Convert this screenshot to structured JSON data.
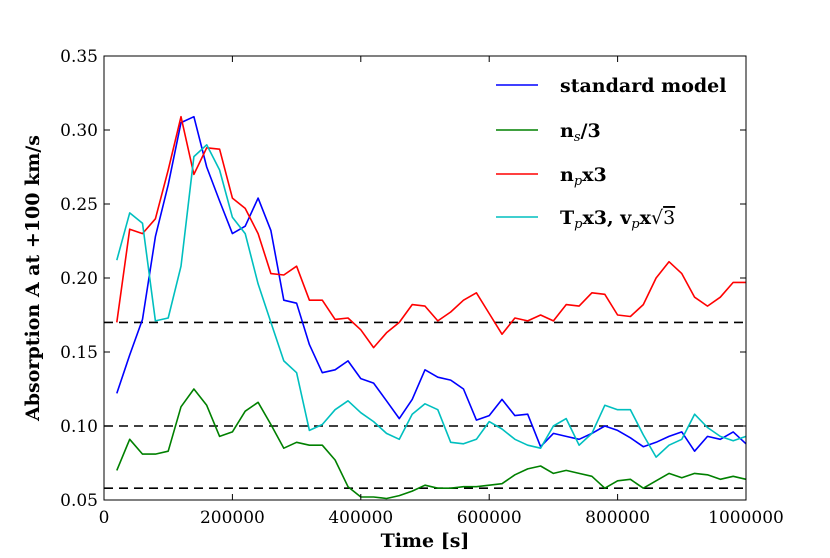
{
  "chart_data": {
    "type": "line",
    "title": "",
    "xlabel": "Time [s]",
    "ylabel": "Absorption A at +100 km/s",
    "xlim": [
      0,
      1000000
    ],
    "ylim": [
      0.05,
      0.35
    ],
    "grid": false,
    "legend_position": "top-right",
    "x_ticks": [
      0,
      200000,
      400000,
      600000,
      800000,
      1000000
    ],
    "x_tick_labels": [
      "0",
      "200000",
      "400000",
      "600000",
      "800000",
      "1000000"
    ],
    "y_ticks": [
      0.05,
      0.1,
      0.15,
      0.2,
      0.25,
      0.3,
      0.35
    ],
    "y_tick_labels": [
      "0.05",
      "0.10",
      "0.15",
      "0.20",
      "0.25",
      "0.30",
      "0.35"
    ],
    "reference_lines": [
      0.17,
      0.1,
      0.058
    ],
    "x": [
      20000,
      40000,
      60000,
      80000,
      100000,
      120000,
      140000,
      160000,
      180000,
      200000,
      220000,
      240000,
      260000,
      280000,
      300000,
      320000,
      340000,
      360000,
      380000,
      400000,
      420000,
      440000,
      460000,
      480000,
      500000,
      520000,
      540000,
      560000,
      580000,
      600000,
      620000,
      640000,
      660000,
      680000,
      700000,
      720000,
      740000,
      760000,
      780000,
      800000,
      820000,
      840000,
      860000,
      880000,
      900000,
      920000,
      940000,
      960000,
      980000,
      1000000
    ],
    "series": [
      {
        "name": "standard model",
        "legend": {
          "main": "standard model",
          "sub": "",
          "tail": "",
          "extra": "",
          "sub2": "",
          "tail2": "",
          "radicand": ""
        },
        "color": "#0000ff",
        "values": [
          0.122,
          0.148,
          0.172,
          0.228,
          0.263,
          0.305,
          0.309,
          0.275,
          0.252,
          0.23,
          0.235,
          0.254,
          0.232,
          0.185,
          0.183,
          0.155,
          0.136,
          0.138,
          0.144,
          0.132,
          0.129,
          0.117,
          0.105,
          0.118,
          0.138,
          0.133,
          0.131,
          0.125,
          0.104,
          0.107,
          0.118,
          0.107,
          0.108,
          0.086,
          0.095,
          0.093,
          0.091,
          0.095,
          0.1,
          0.097,
          0.092,
          0.086,
          0.089,
          0.093,
          0.096,
          0.083,
          0.093,
          0.091,
          0.096,
          0.088
        ]
      },
      {
        "name": "n_s/3",
        "legend": {
          "main": "n",
          "sub": "s",
          "tail": "/3",
          "extra": "",
          "sub2": "",
          "tail2": "",
          "radicand": ""
        },
        "color": "#008000",
        "values": [
          0.07,
          0.091,
          0.081,
          0.081,
          0.083,
          0.113,
          0.125,
          0.114,
          0.093,
          0.096,
          0.11,
          0.116,
          0.101,
          0.085,
          0.089,
          0.087,
          0.087,
          0.077,
          0.059,
          0.052,
          0.052,
          0.051,
          0.053,
          0.056,
          0.06,
          0.058,
          0.058,
          0.059,
          0.059,
          0.06,
          0.061,
          0.067,
          0.071,
          0.073,
          0.068,
          0.07,
          0.068,
          0.066,
          0.058,
          0.063,
          0.064,
          0.058,
          0.063,
          0.068,
          0.065,
          0.068,
          0.067,
          0.064,
          0.066,
          0.064
        ]
      },
      {
        "name": "n_px3",
        "legend": {
          "main": "n",
          "sub": "p",
          "tail": "x3",
          "extra": "",
          "sub2": "",
          "tail2": "",
          "radicand": ""
        },
        "color": "#ff0000",
        "values": [
          0.17,
          0.233,
          0.23,
          0.24,
          0.273,
          0.309,
          0.27,
          0.288,
          0.287,
          0.254,
          0.247,
          0.23,
          0.203,
          0.202,
          0.208,
          0.185,
          0.185,
          0.172,
          0.173,
          0.165,
          0.153,
          0.163,
          0.17,
          0.182,
          0.181,
          0.171,
          0.177,
          0.185,
          0.19,
          0.176,
          0.162,
          0.173,
          0.171,
          0.175,
          0.171,
          0.182,
          0.181,
          0.19,
          0.189,
          0.175,
          0.174,
          0.182,
          0.2,
          0.211,
          0.203,
          0.187,
          0.181,
          0.187,
          0.197,
          0.197
        ]
      },
      {
        "name": "T_px3, v_px√3",
        "legend": {
          "main": "T",
          "sub": "p",
          "tail": "x3, ",
          "extra": "v",
          "sub2": "p",
          "tail2": "x",
          "radicand": "3"
        },
        "color": "#00bfbf",
        "values": [
          0.212,
          0.244,
          0.237,
          0.171,
          0.173,
          0.208,
          0.282,
          0.29,
          0.273,
          0.241,
          0.23,
          0.196,
          0.17,
          0.144,
          0.136,
          0.097,
          0.101,
          0.111,
          0.117,
          0.109,
          0.103,
          0.095,
          0.091,
          0.108,
          0.115,
          0.111,
          0.089,
          0.088,
          0.091,
          0.103,
          0.098,
          0.091,
          0.087,
          0.085,
          0.1,
          0.105,
          0.087,
          0.095,
          0.114,
          0.111,
          0.111,
          0.094,
          0.079,
          0.087,
          0.091,
          0.108,
          0.099,
          0.093,
          0.09,
          0.093
        ]
      }
    ]
  }
}
